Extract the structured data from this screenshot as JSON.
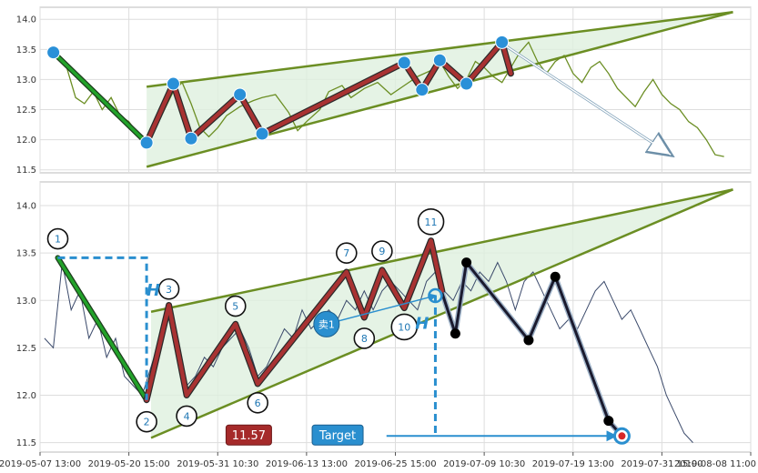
{
  "chart_data": {
    "type": "line",
    "title": "",
    "x_tick_labels": [
      "2019-05-07 13:00",
      "2019-05-20 15:00",
      "2019-05-31 10:30",
      "2019-06-13 13:00",
      "2019-06-25 15:00",
      "2019-07-09 10:30",
      "2019-07-19 13:00",
      "2019-07-31 15:00",
      "2019-08-08 11:00"
    ],
    "x_range": [
      0,
      16
    ],
    "grid": true,
    "legend": "none",
    "colors": {
      "price": "#6b8e23",
      "price_bottom": "#3b4a6b",
      "wedge_line": "#6b8e23",
      "wedge_fill": "#dff0df",
      "zigzag": "#a83232",
      "zigzag_edge": "#2b2b2b",
      "first_leg": "#22a22a",
      "pivot_dot": "#2a90d8",
      "target": "#2a8fcf",
      "black_path": "#1a1a2e"
    },
    "panels": [
      {
        "name_hint": "top",
        "y_ticks": [
          11.5,
          12.0,
          12.5,
          13.0,
          13.5,
          14.0
        ],
        "ylim": [
          11.45,
          14.2
        ],
        "price": [
          [
            0.3,
            13.45
          ],
          [
            0.6,
            13.2
          ],
          [
            0.8,
            12.7
          ],
          [
            1.0,
            12.6
          ],
          [
            1.2,
            12.8
          ],
          [
            1.4,
            12.5
          ],
          [
            1.6,
            12.7
          ],
          [
            1.8,
            12.4
          ],
          [
            2.0,
            12.3
          ],
          [
            2.2,
            12.1
          ],
          [
            2.4,
            11.95
          ],
          [
            2.6,
            12.2
          ],
          [
            2.8,
            12.5
          ],
          [
            3.0,
            12.8
          ],
          [
            3.2,
            12.95
          ],
          [
            3.4,
            12.6
          ],
          [
            3.6,
            12.2
          ],
          [
            3.8,
            12.05
          ],
          [
            4.0,
            12.2
          ],
          [
            4.2,
            12.4
          ],
          [
            4.5,
            12.55
          ],
          [
            4.8,
            12.65
          ],
          [
            5.0,
            12.7
          ],
          [
            5.3,
            12.75
          ],
          [
            5.6,
            12.45
          ],
          [
            5.8,
            12.15
          ],
          [
            6.0,
            12.3
          ],
          [
            6.3,
            12.5
          ],
          [
            6.5,
            12.8
          ],
          [
            6.8,
            12.9
          ],
          [
            7.0,
            12.7
          ],
          [
            7.3,
            12.85
          ],
          [
            7.6,
            12.95
          ],
          [
            7.9,
            12.75
          ],
          [
            8.2,
            12.9
          ],
          [
            8.5,
            13.05
          ],
          [
            8.8,
            13.15
          ],
          [
            9.0,
            13.3
          ],
          [
            9.2,
            13.05
          ],
          [
            9.4,
            12.85
          ],
          [
            9.6,
            13.0
          ],
          [
            9.8,
            13.3
          ],
          [
            10.0,
            13.2
          ],
          [
            10.2,
            13.05
          ],
          [
            10.4,
            12.95
          ],
          [
            10.6,
            13.2
          ],
          [
            10.8,
            13.45
          ],
          [
            11.0,
            13.62
          ],
          [
            11.2,
            13.3
          ],
          [
            11.4,
            13.1
          ],
          [
            11.6,
            13.3
          ],
          [
            11.8,
            13.4
          ],
          [
            12.0,
            13.1
          ],
          [
            12.2,
            12.95
          ],
          [
            12.4,
            13.2
          ],
          [
            12.6,
            13.3
          ],
          [
            12.8,
            13.1
          ],
          [
            13.0,
            12.85
          ],
          [
            13.2,
            12.7
          ],
          [
            13.4,
            12.55
          ],
          [
            13.6,
            12.8
          ],
          [
            13.8,
            13.0
          ],
          [
            14.0,
            12.75
          ],
          [
            14.2,
            12.6
          ],
          [
            14.4,
            12.5
          ],
          [
            14.6,
            12.3
          ],
          [
            14.8,
            12.2
          ],
          [
            15.0,
            12.0
          ],
          [
            15.2,
            11.75
          ],
          [
            15.4,
            11.72
          ]
        ],
        "pivots": [
          [
            0.3,
            13.45
          ],
          [
            2.4,
            11.95
          ],
          [
            3.0,
            12.93
          ],
          [
            3.4,
            12.02
          ],
          [
            4.5,
            12.75
          ],
          [
            5.0,
            12.1
          ],
          [
            8.2,
            13.28
          ],
          [
            8.6,
            12.83
          ],
          [
            9.0,
            13.32
          ],
          [
            9.6,
            12.93
          ],
          [
            10.4,
            13.62
          ]
        ],
        "wedge_upper": [
          [
            2.4,
            12.88
          ],
          [
            15.6,
            14.12
          ]
        ],
        "wedge_lower": [
          [
            2.4,
            11.55
          ],
          [
            15.6,
            14.12
          ]
        ],
        "first_leg": [
          [
            0.3,
            13.45
          ],
          [
            2.4,
            11.95
          ]
        ],
        "zigzag": [
          [
            2.4,
            11.95
          ],
          [
            3.0,
            12.93
          ],
          [
            3.4,
            12.02
          ],
          [
            4.5,
            12.75
          ],
          [
            5.0,
            12.1
          ],
          [
            8.2,
            13.28
          ],
          [
            8.6,
            12.83
          ],
          [
            9.0,
            13.32
          ],
          [
            9.6,
            12.93
          ],
          [
            10.4,
            13.62
          ],
          [
            10.6,
            13.1
          ]
        ],
        "forecast_arrow": [
          [
            10.4,
            13.6
          ],
          [
            14.2,
            11.75
          ]
        ]
      },
      {
        "name_hint": "bottom",
        "y_ticks": [
          11.5,
          12.0,
          12.5,
          13.0,
          13.5,
          14.0
        ],
        "ylim": [
          11.4,
          14.25
        ],
        "price": [
          [
            0.1,
            12.6
          ],
          [
            0.3,
            12.5
          ],
          [
            0.5,
            13.4
          ],
          [
            0.7,
            12.9
          ],
          [
            0.9,
            13.1
          ],
          [
            1.1,
            12.6
          ],
          [
            1.3,
            12.8
          ],
          [
            1.5,
            12.4
          ],
          [
            1.7,
            12.6
          ],
          [
            1.9,
            12.2
          ],
          [
            2.1,
            12.1
          ],
          [
            2.3,
            12.0
          ],
          [
            2.5,
            12.3
          ],
          [
            2.7,
            12.6
          ],
          [
            2.9,
            12.9
          ],
          [
            3.1,
            12.6
          ],
          [
            3.3,
            12.1
          ],
          [
            3.5,
            12.2
          ],
          [
            3.7,
            12.4
          ],
          [
            3.9,
            12.3
          ],
          [
            4.1,
            12.5
          ],
          [
            4.3,
            12.6
          ],
          [
            4.5,
            12.7
          ],
          [
            4.7,
            12.5
          ],
          [
            4.9,
            12.2
          ],
          [
            5.1,
            12.3
          ],
          [
            5.3,
            12.5
          ],
          [
            5.5,
            12.7
          ],
          [
            5.7,
            12.6
          ],
          [
            5.9,
            12.9
          ],
          [
            6.1,
            12.7
          ],
          [
            6.3,
            12.8
          ],
          [
            6.5,
            12.9
          ],
          [
            6.7,
            12.8
          ],
          [
            6.9,
            13.0
          ],
          [
            7.1,
            12.9
          ],
          [
            7.3,
            13.1
          ],
          [
            7.5,
            12.9
          ],
          [
            7.7,
            13.1
          ],
          [
            7.9,
            13.2
          ],
          [
            8.1,
            13.1
          ],
          [
            8.3,
            13.0
          ],
          [
            8.5,
            12.9
          ],
          [
            8.7,
            13.2
          ],
          [
            8.9,
            13.3
          ],
          [
            9.1,
            13.1
          ],
          [
            9.3,
            13.0
          ],
          [
            9.5,
            13.2
          ],
          [
            9.7,
            13.1
          ],
          [
            9.9,
            13.3
          ],
          [
            10.1,
            13.2
          ],
          [
            10.3,
            13.4
          ],
          [
            10.5,
            13.2
          ],
          [
            10.7,
            12.9
          ],
          [
            10.9,
            13.2
          ],
          [
            11.1,
            13.3
          ],
          [
            11.3,
            13.1
          ],
          [
            11.5,
            12.9
          ],
          [
            11.7,
            12.7
          ],
          [
            11.9,
            12.8
          ],
          [
            12.1,
            12.7
          ],
          [
            12.3,
            12.9
          ],
          [
            12.5,
            13.1
          ],
          [
            12.7,
            13.2
          ],
          [
            12.9,
            13.0
          ],
          [
            13.1,
            12.8
          ],
          [
            13.3,
            12.9
          ],
          [
            13.5,
            12.7
          ],
          [
            13.7,
            12.5
          ],
          [
            13.9,
            12.3
          ],
          [
            14.1,
            12.0
          ],
          [
            14.3,
            11.8
          ],
          [
            14.5,
            11.6
          ],
          [
            14.7,
            11.5
          ]
        ],
        "wedge_upper": [
          [
            2.5,
            12.88
          ],
          [
            15.6,
            14.17
          ]
        ],
        "wedge_lower": [
          [
            2.5,
            11.55
          ],
          [
            15.6,
            14.17
          ]
        ],
        "first_leg": [
          [
            0.4,
            13.45
          ],
          [
            2.4,
            11.95
          ]
        ],
        "zigzag": [
          [
            2.4,
            11.95
          ],
          [
            2.9,
            12.95
          ],
          [
            3.3,
            12.0
          ],
          [
            4.4,
            12.75
          ],
          [
            4.9,
            12.12
          ],
          [
            6.9,
            13.3
          ],
          [
            7.3,
            12.82
          ],
          [
            7.7,
            13.32
          ],
          [
            8.2,
            12.92
          ],
          [
            8.8,
            13.63
          ],
          [
            9.05,
            13.1
          ]
        ],
        "black_path": [
          [
            9.05,
            13.08
          ],
          [
            9.35,
            12.65
          ],
          [
            9.6,
            13.4
          ],
          [
            11.0,
            12.58
          ],
          [
            11.6,
            13.25
          ],
          [
            12.8,
            11.73
          ],
          [
            13.1,
            11.57
          ]
        ],
        "black_dots": [
          [
            9.35,
            12.65
          ],
          [
            9.6,
            13.4
          ],
          [
            11.0,
            12.58
          ],
          [
            11.6,
            13.25
          ],
          [
            12.8,
            11.73
          ]
        ],
        "target_point": [
          13.1,
          11.57
        ],
        "labels": [
          {
            "text": "1",
            "x": 0.4,
            "y": 13.65
          },
          {
            "text": "2",
            "x": 2.4,
            "y": 11.72
          },
          {
            "text": "3",
            "x": 2.9,
            "y": 13.12
          },
          {
            "text": "4",
            "x": 3.3,
            "y": 11.78
          },
          {
            "text": "5",
            "x": 4.4,
            "y": 12.94
          },
          {
            "text": "6",
            "x": 4.9,
            "y": 11.92
          },
          {
            "text": "7",
            "x": 6.9,
            "y": 13.5
          },
          {
            "text": "8",
            "x": 7.3,
            "y": 12.6
          },
          {
            "text": "9",
            "x": 7.7,
            "y": 13.52
          },
          {
            "text": "10",
            "x": 8.2,
            "y": 12.72
          },
          {
            "text": "11",
            "x": 8.8,
            "y": 13.83
          }
        ],
        "left_h_label": {
          "text": "H",
          "x": 2.55,
          "y": 13.05
        },
        "right_h_label": {
          "text": "H",
          "x": 8.6,
          "y": 12.7
        },
        "sell_marker": {
          "text": "卖1",
          "x": 6.45,
          "y": 12.75
        },
        "sell_arrow_end": {
          "x": 8.9,
          "y": 13.05
        },
        "price_badge": {
          "text": "11.57",
          "x": 4.7,
          "y": 11.58
        },
        "target_badge": {
          "text": "Target",
          "x": 6.7,
          "y": 11.58
        },
        "target_arrow": [
          [
            7.8,
            11.57
          ],
          [
            12.95,
            11.57
          ]
        ],
        "h_box_left": {
          "x": 0.4,
          "y_top": 13.45,
          "x_right": 2.4,
          "y_bottom": 11.95
        },
        "h_box_right": {
          "x": 8.9,
          "y_top": 13.05,
          "y_bottom": 11.57
        }
      }
    ]
  }
}
